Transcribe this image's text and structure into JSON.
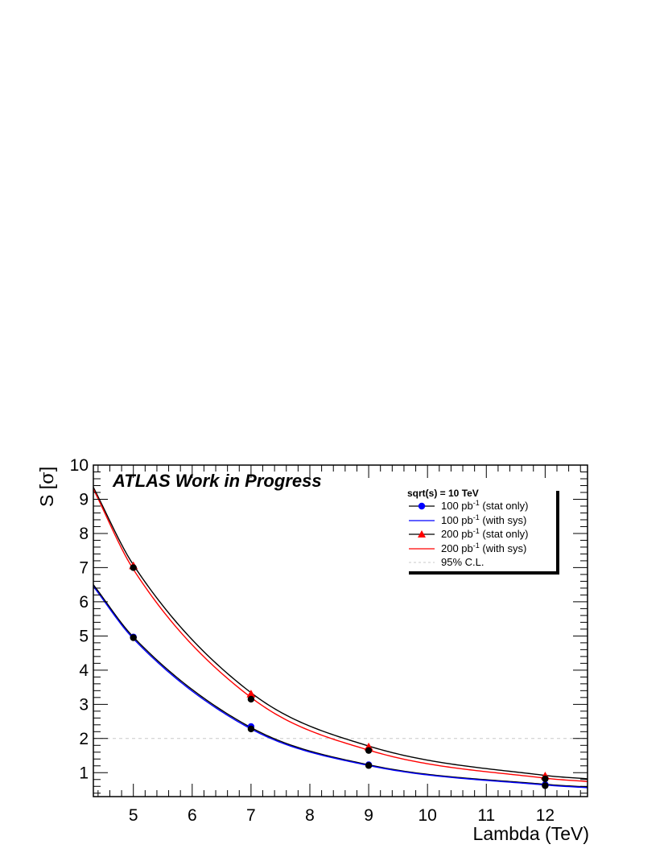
{
  "chart_data": {
    "type": "line",
    "watermark": "ATLAS Work in Progress",
    "xlabel": "Lambda (TeV)",
    "ylabel_main": "S [",
    "ylabel_symbol": "σ",
    "ylabel_end": "]",
    "xlim": [
      4.32,
      12.72
    ],
    "ylim": [
      0.3,
      10
    ],
    "xticks": [
      5,
      6,
      7,
      8,
      9,
      10,
      11,
      12
    ],
    "yticks": [
      1,
      2,
      3,
      4,
      5,
      6,
      7,
      8,
      9,
      10
    ],
    "legend": {
      "title": "sqrt(s) = 10 TeV",
      "placement": "top-right",
      "entries": [
        {
          "pre": "100 pb",
          "sup": "-1",
          "post": " (stat only)",
          "style": "black-line-blue-circle"
        },
        {
          "pre": "100 pb",
          "sup": "-1",
          "post": " (with sys)",
          "style": "blue-line"
        },
        {
          "pre": "200 pb",
          "sup": "-1",
          "post": " (stat only)",
          "style": "black-line-red-triangle"
        },
        {
          "pre": "200 pb",
          "sup": "-1",
          "post": " (with sys)",
          "style": "red-line"
        },
        {
          "pre": "95% C.L.",
          "sup": "",
          "post": "",
          "style": "gray-dashed"
        }
      ]
    },
    "reference_line": {
      "y": 2.0,
      "label": "95% C.L.",
      "color": "#c8c8c8"
    },
    "series": [
      {
        "name": "100 pb-1 (stat only)",
        "color": "#000000",
        "marker": "circle",
        "marker_color": "#0000ff",
        "x": [
          5,
          7,
          9,
          12
        ],
        "y": [
          4.97,
          2.35,
          1.23,
          0.65
        ]
      },
      {
        "name": "100 pb-1 (with sys)",
        "color": "#0000ff",
        "marker": "circle",
        "marker_color": "#000000",
        "x": [
          5,
          7,
          9,
          12
        ],
        "y": [
          4.95,
          2.28,
          1.21,
          0.62
        ]
      },
      {
        "name": "200 pb-1 (stat only)",
        "color": "#000000",
        "marker": "triangle",
        "marker_color": "#ff0000",
        "x": [
          5,
          7,
          9,
          12
        ],
        "y": [
          7.05,
          3.3,
          1.75,
          0.9
        ]
      },
      {
        "name": "200 pb-1 (with sys)",
        "color": "#ff0000",
        "marker": "circle",
        "marker_color": "#000000",
        "x": [
          5,
          7,
          9,
          12
        ],
        "y": [
          7.0,
          3.15,
          1.65,
          0.82
        ]
      }
    ],
    "fit_curves": [
      {
        "name": "100 pb-1 (stat only) fit",
        "color": "#000000",
        "x": [
          4.32,
          5,
          7,
          9,
          12,
          12.72
        ],
        "y": [
          6.5,
          4.97,
          2.32,
          1.23,
          0.66,
          0.58
        ]
      },
      {
        "name": "100 pb-1 (with sys) fit",
        "color": "#0000ff",
        "x": [
          4.32,
          5,
          7,
          9,
          12,
          12.72
        ],
        "y": [
          6.45,
          4.92,
          2.28,
          1.21,
          0.64,
          0.56
        ]
      },
      {
        "name": "200 pb-1 (stat only) fit",
        "color": "#000000",
        "x": [
          4.32,
          5,
          7,
          9,
          12,
          12.72
        ],
        "y": [
          9.35,
          7.08,
          3.34,
          1.78,
          0.92,
          0.82
        ]
      },
      {
        "name": "200 pb-1 (with sys) fit",
        "color": "#ff0000",
        "x": [
          4.32,
          5,
          7,
          9,
          12,
          12.72
        ],
        "y": [
          9.3,
          6.95,
          3.2,
          1.66,
          0.84,
          0.74
        ]
      }
    ],
    "grid": false
  }
}
